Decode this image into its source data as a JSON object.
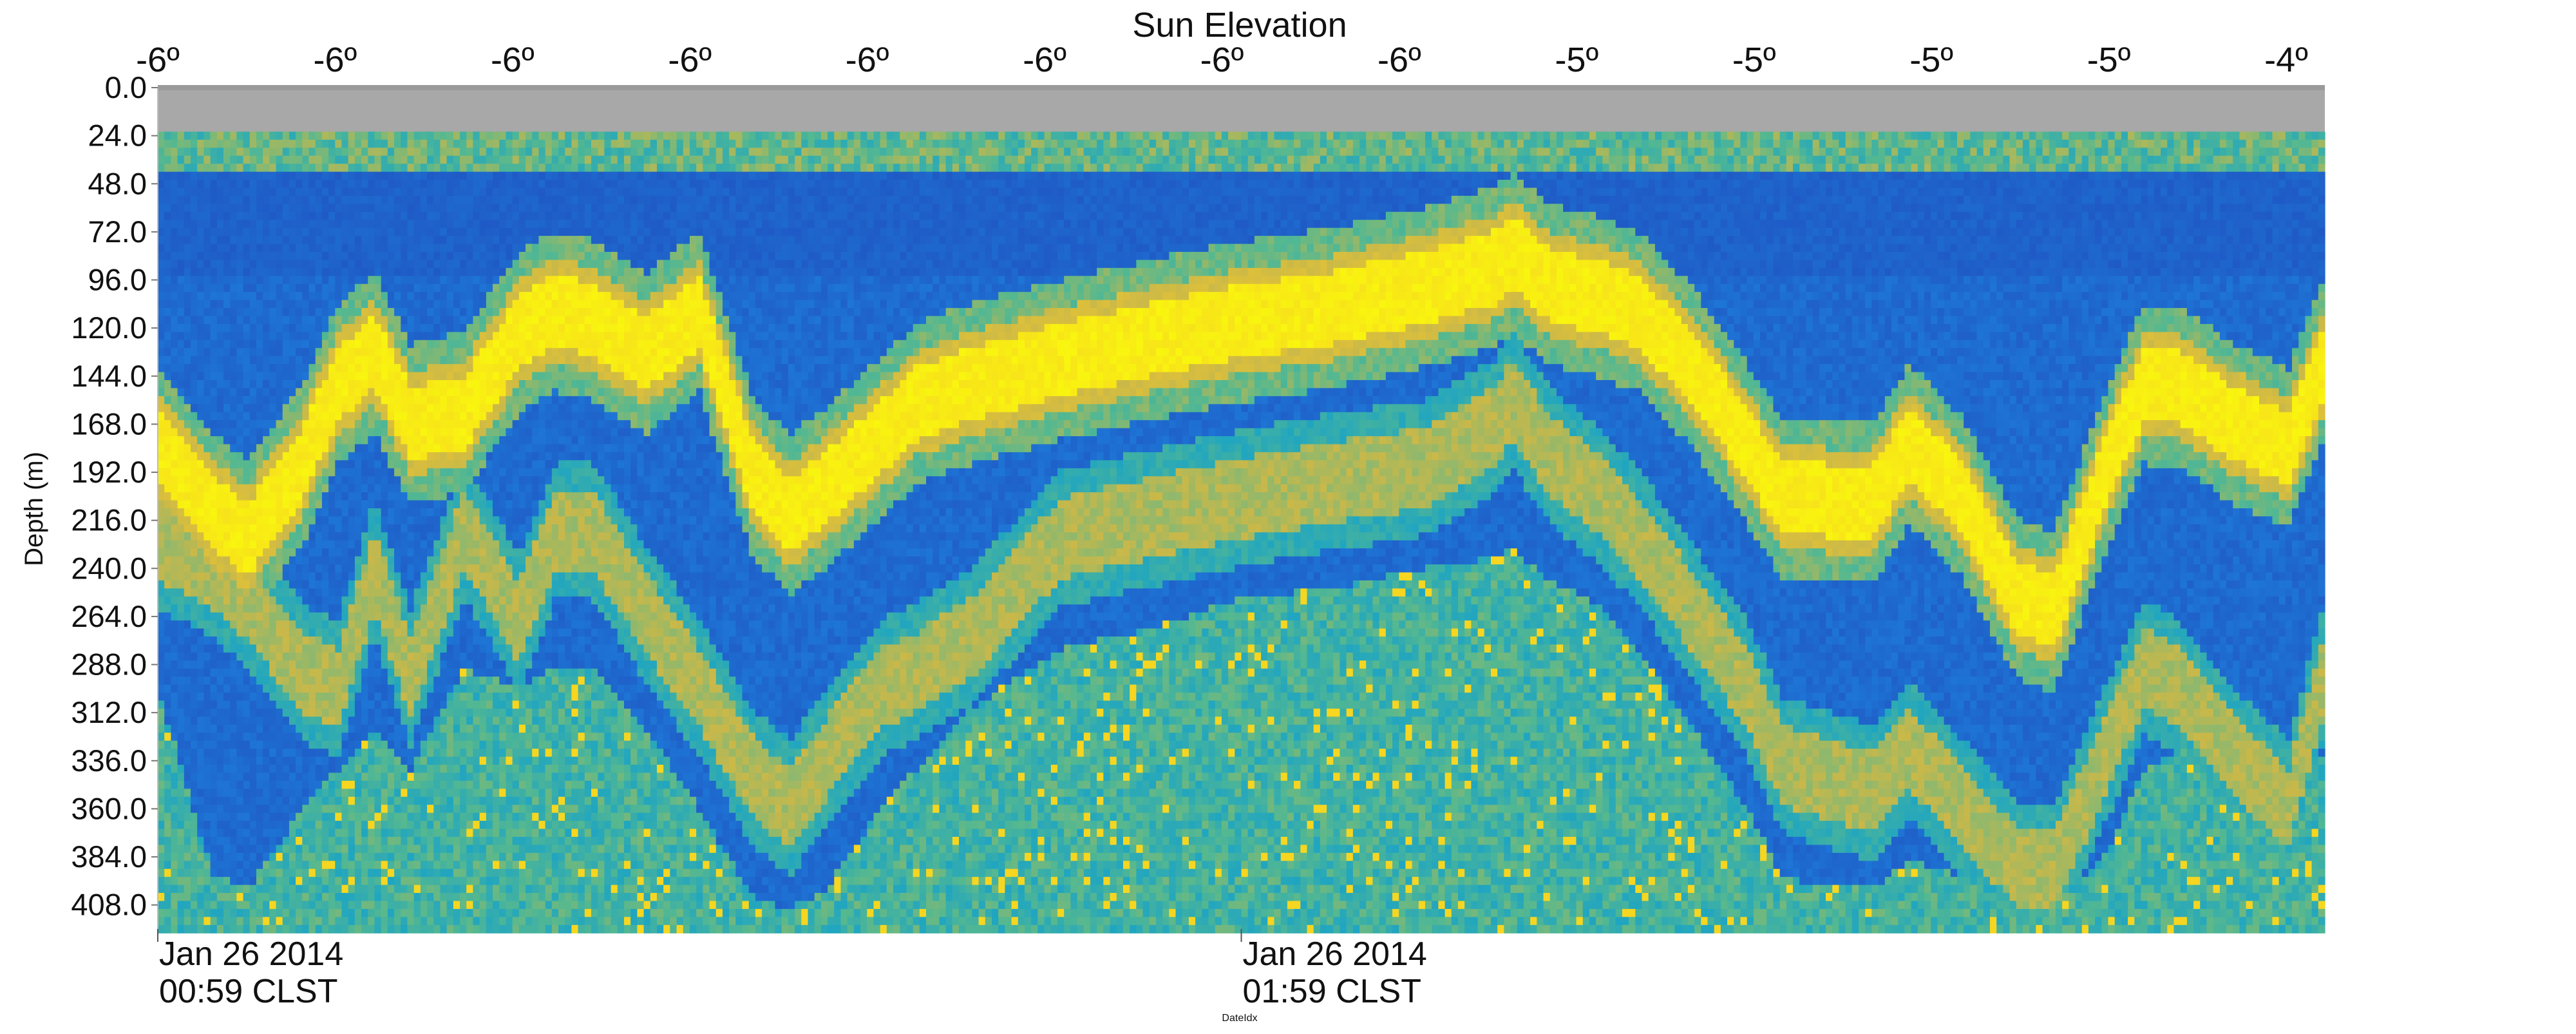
{
  "chart_data": {
    "type": "heatmap",
    "title": "Sun Elevation",
    "xlabel": "DateIdx",
    "ylabel": "Depth (m)",
    "sun_elevation_ticks": [
      "-6º",
      "-6º",
      "-6º",
      "-6º",
      "-6º",
      "-6º",
      "-6º",
      "-6º",
      "-5º",
      "-5º",
      "-5º",
      "-5º",
      "-4º"
    ],
    "y_ticks": [
      "0.0",
      "24.0",
      "48.0",
      "72.0",
      "96.0",
      "120.0",
      "144.0",
      "168.0",
      "192.0",
      "216.0",
      "240.0",
      "264.0",
      "288.0",
      "312.0",
      "336.0",
      "360.0",
      "384.0",
      "408.0"
    ],
    "ylim": [
      0,
      420
    ],
    "x_ticks": [
      {
        "date": "Jan 26 2014",
        "time": "00:59 CLST"
      },
      {
        "date": "Jan 26 2014",
        "time": "01:59 CLST"
      }
    ],
    "xlim_minutes": [
      0,
      120
    ],
    "x_tick_minutes": [
      0,
      60
    ],
    "near_surface_no_data_depth": 22,
    "colormap": {
      "name": "parula",
      "stops": [
        "#2a1d8a",
        "#1f4fbf",
        "#1e7ad8",
        "#17a2c9",
        "#55b890",
        "#c8b84a",
        "#f5c928",
        "#f9f50f"
      ]
    },
    "no_data_color": "#a8a8a8",
    "layers": [
      {
        "name": "surface band",
        "min_depth": 22,
        "max_depth": 42,
        "intensity": 0.6
      },
      {
        "name": "primary scattering layer",
        "t": [
          0,
          3,
          5,
          8,
          10,
          12,
          14,
          17,
          20,
          22,
          24,
          27,
          30,
          33,
          35,
          37,
          40,
          42,
          45,
          50,
          55,
          60,
          65,
          70,
          74,
          75,
          77,
          80,
          82,
          85,
          88,
          90,
          95,
          97,
          100,
          103,
          105,
          108,
          110,
          112,
          115,
          118,
          120
        ],
        "depth": [
          178,
          212,
          226,
          188,
          148,
          132,
          168,
          162,
          122,
          112,
          115,
          133,
          112,
          195,
          213,
          200,
          175,
          158,
          148,
          136,
          126,
          117,
          110,
          100,
          90,
          82,
          98,
          105,
          112,
          140,
          178,
          205,
          207,
          178,
          205,
          255,
          262,
          188,
          148,
          150,
          168,
          180,
          135
        ],
        "intensity": 1.0
      },
      {
        "name": "secondary scattering layer",
        "t": [
          0,
          3,
          5,
          8,
          10,
          12,
          14,
          17,
          20,
          22,
          24,
          27,
          30,
          33,
          35,
          37,
          40,
          42,
          45,
          50,
          55,
          60,
          65,
          70,
          74,
          75,
          77,
          80,
          82,
          85,
          88,
          90,
          95,
          97,
          100,
          103,
          105,
          108,
          110,
          112,
          115,
          118,
          120
        ],
        "depth": [
          226,
          240,
          256,
          292,
          300,
          240,
          295,
          220,
          268,
          222,
          220,
          262,
          300,
          345,
          360,
          335,
          300,
          292,
          275,
          225,
          215,
          205,
          197,
          190,
          170,
          155,
          183,
          205,
          225,
          262,
          300,
          338,
          352,
          330,
          360,
          390,
          392,
          330,
          290,
          300,
          335,
          360,
          290
        ],
        "intensity": 0.72
      },
      {
        "name": "deep diffuse signal",
        "t": [
          0,
          3,
          5,
          8,
          10,
          12,
          14,
          17,
          20,
          22,
          24,
          27,
          30,
          33,
          35,
          37,
          40,
          42,
          45,
          50,
          55,
          60,
          65,
          70,
          74,
          75,
          77,
          80,
          82,
          85,
          88,
          90,
          95,
          97,
          100,
          103,
          105,
          108,
          110,
          112,
          115,
          118,
          120
        ],
        "depth": [
          300,
          392,
          400,
          360,
          340,
          320,
          340,
          290,
          300,
          290,
          290,
          320,
          360,
          405,
          410,
          400,
          360,
          340,
          310,
          280,
          270,
          255,
          250,
          240,
          235,
          230,
          245,
          260,
          280,
          320,
          360,
          395,
          400,
          385,
          395,
          410,
          410,
          380,
          340,
          330,
          360,
          380,
          330
        ],
        "intensity": 0.55
      }
    ]
  }
}
